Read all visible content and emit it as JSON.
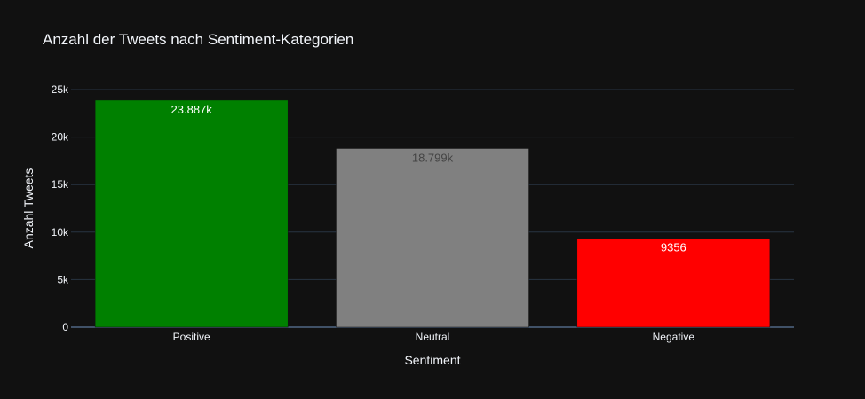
{
  "chart_data": {
    "type": "bar",
    "title": "Anzahl der Tweets nach Sentiment-Kategorien",
    "xlabel": "Sentiment",
    "ylabel": "Anzahl Tweets",
    "categories": [
      "Positive",
      "Neutral",
      "Negative"
    ],
    "values": [
      23887,
      18799,
      9356
    ],
    "value_labels": [
      "23.887k",
      "18.799k",
      "9356"
    ],
    "colors": [
      "#008000",
      "#808080",
      "#ff0000"
    ],
    "label_colors": [
      "#ffffff",
      "#444444",
      "#ffffff"
    ],
    "ylim": [
      0,
      25000
    ],
    "yticks": [
      0,
      5000,
      10000,
      15000,
      20000,
      25000
    ],
    "ytick_labels": [
      "0",
      "5k",
      "10k",
      "15k",
      "20k",
      "25k"
    ],
    "grid": true,
    "background": "#111111"
  }
}
